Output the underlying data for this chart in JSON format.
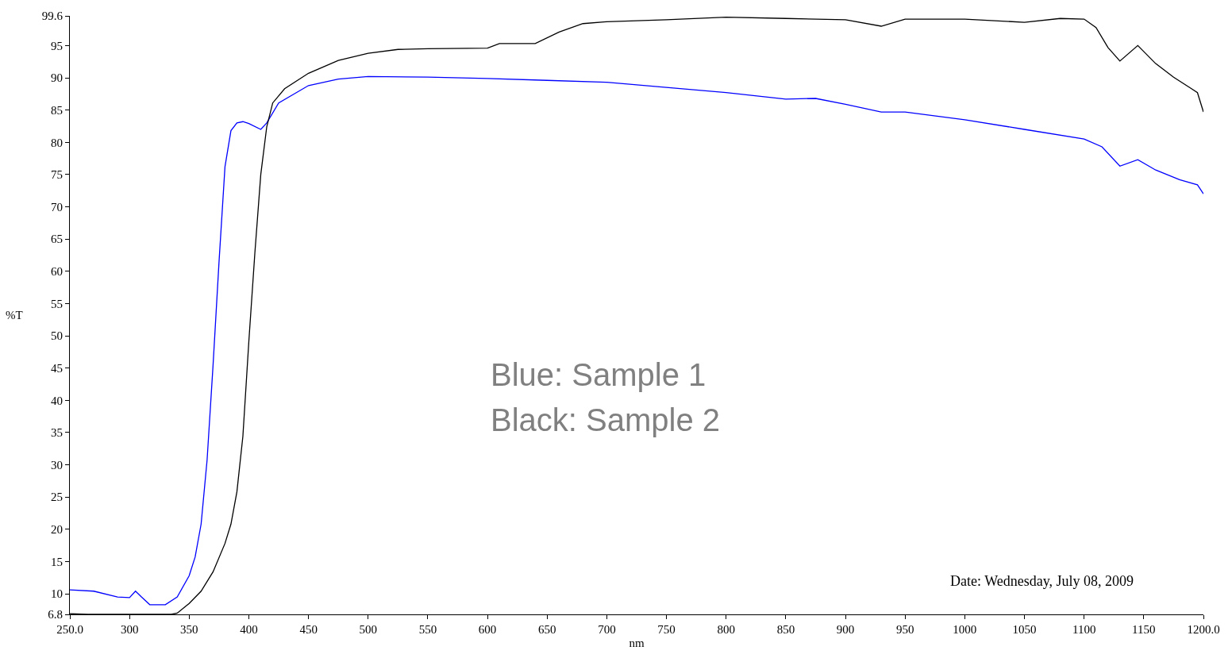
{
  "chart_data": {
    "type": "line",
    "xlabel": "nm",
    "ylabel": "%T",
    "annotations": [
      "Blue: Sample 1",
      "Black: Sample 2",
      "Date: Wednesday, July 08, 2009"
    ],
    "xlim": [
      250,
      1200
    ],
    "ylim": [
      6.8,
      99.6
    ],
    "xticks": [
      {
        "value": 250,
        "label": "250.0"
      },
      300,
      350,
      400,
      450,
      500,
      550,
      600,
      650,
      700,
      750,
      800,
      850,
      900,
      950,
      1000,
      1050,
      1100,
      1150,
      {
        "value": 1200,
        "label": "1200.0"
      }
    ],
    "yticks": [
      6.8,
      10,
      15,
      20,
      25,
      30,
      35,
      40,
      45,
      50,
      55,
      60,
      65,
      70,
      75,
      80,
      85,
      90,
      95,
      99.6
    ],
    "marker": "none",
    "line_style": "solid",
    "series": [
      {
        "color": "#0000ff",
        "x": [
          250,
          270,
          290,
          300,
          305,
          310,
          317,
          330,
          340,
          350,
          355,
          360,
          365,
          370,
          375,
          380,
          385,
          390,
          395,
          400,
          410,
          415,
          425,
          450,
          475,
          500,
          550,
          600,
          650,
          700,
          750,
          800,
          850,
          875,
          900,
          930,
          950,
          1000,
          1050,
          1100,
          1115,
          1130,
          1145,
          1160,
          1180,
          1195,
          1200
        ],
        "values": [
          10.6,
          10.4,
          9.5,
          9.4,
          10.4,
          9.5,
          8.3,
          8.3,
          9.5,
          12.8,
          15.7,
          20.8,
          30.7,
          45.4,
          61.4,
          76.2,
          81.8,
          83.0,
          83.2,
          82.9,
          82.0,
          83.0,
          86.1,
          88.8,
          89.8,
          90.2,
          90.1,
          89.9,
          89.6,
          89.3,
          88.5,
          87.7,
          86.7,
          86.8,
          85.9,
          84.7,
          84.7,
          83.5,
          82.0,
          80.5,
          79.3,
          76.3,
          77.3,
          75.7,
          74.2,
          73.4,
          72.0
        ]
      },
      {
        "color": "#000000",
        "x": [
          250,
          265,
          300,
          335,
          340,
          350,
          360,
          370,
          380,
          385,
          390,
          395,
          400,
          405,
          410,
          415,
          420,
          430,
          450,
          475,
          500,
          525,
          550,
          600,
          610,
          640,
          660,
          680,
          700,
          750,
          800,
          850,
          900,
          930,
          950,
          1000,
          1050,
          1080,
          1100,
          1110,
          1120,
          1130,
          1145,
          1160,
          1175,
          1190,
          1195,
          1200
        ],
        "values": [
          6.9,
          6.8,
          6.8,
          6.8,
          7.0,
          8.5,
          10.4,
          13.4,
          17.8,
          20.8,
          25.8,
          34.4,
          49.1,
          62.7,
          75.0,
          82.4,
          86.1,
          88.3,
          90.7,
          92.7,
          93.8,
          94.4,
          94.5,
          94.6,
          95.3,
          95.3,
          97.1,
          98.4,
          98.7,
          99.0,
          99.4,
          99.2,
          99.0,
          98.0,
          99.1,
          99.1,
          98.6,
          99.2,
          99.1,
          97.8,
          94.7,
          92.6,
          95.0,
          92.2,
          90.1,
          88.3,
          87.7,
          84.7
        ]
      }
    ]
  }
}
